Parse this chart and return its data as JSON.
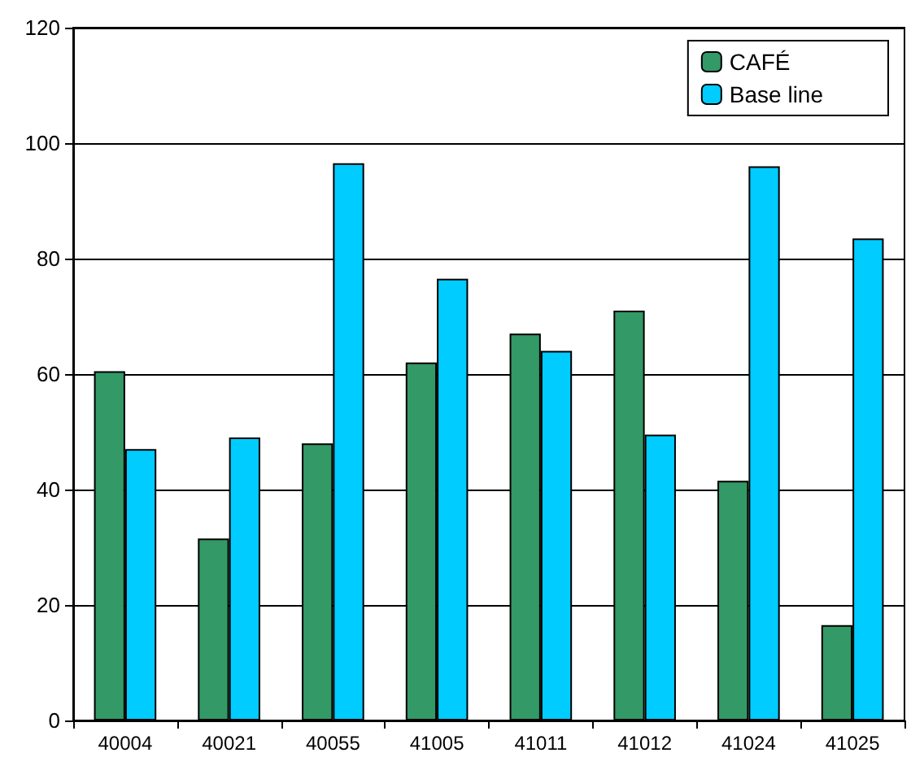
{
  "chart_data": {
    "type": "bar",
    "categories": [
      "40004",
      "40021",
      "40055",
      "41005",
      "41011",
      "41012",
      "41024",
      "41025"
    ],
    "series": [
      {
        "name": "CAFÉ",
        "color": "#339966",
        "values": [
          60.5,
          31.5,
          48,
          62,
          67,
          71,
          41.5,
          16.5
        ]
      },
      {
        "name": "Base line",
        "color": "#00ccff",
        "values": [
          47,
          49,
          96.5,
          76.5,
          64,
          49.5,
          96,
          83.5
        ]
      }
    ],
    "ylim": [
      0,
      120
    ],
    "yticks": [
      0,
      20,
      40,
      60,
      80,
      100,
      120
    ],
    "grid": "y",
    "legend": "top right"
  }
}
